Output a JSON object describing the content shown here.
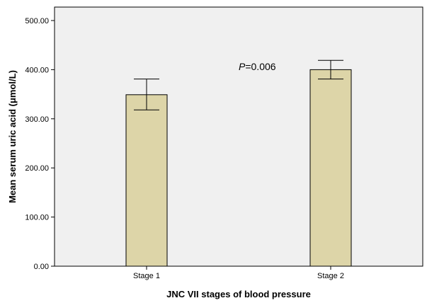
{
  "chart_data": {
    "type": "bar",
    "categories": [
      "Stage 1",
      "Stage 2"
    ],
    "values": [
      349,
      400
    ],
    "error_bars": [
      {
        "low": 318,
        "high": 381
      },
      {
        "low": 381,
        "high": 419
      }
    ],
    "xlabel": "JNC VII stages of blood pressure",
    "ylabel": "Mean serum uric acid (μmol/L)",
    "ylim": [
      0,
      500
    ],
    "yticks": [
      "0.00",
      "100.00",
      "200.00",
      "300.00",
      "400.00",
      "500.00"
    ],
    "annotation": {
      "p_label": "P",
      "p_value": "=0.006"
    },
    "grid": false,
    "colors": {
      "bar_fill": "#DDD5A8",
      "plot_bg": "#F0F0F0"
    }
  }
}
